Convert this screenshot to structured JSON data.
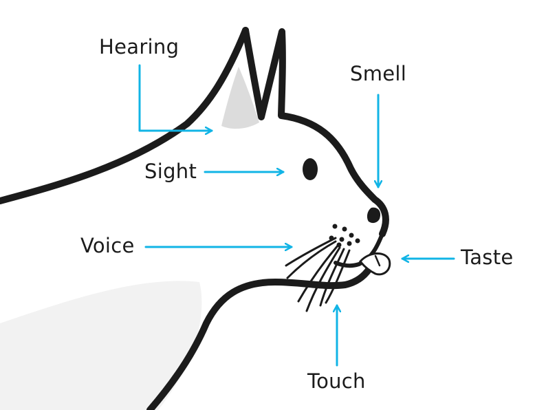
{
  "colors": {
    "outline": "#1b1b1b",
    "arrow": "#11b4e6",
    "ear_inner": "#dcdcdc",
    "body_shadow": "#f2f2f2",
    "tongue": "#ffffff",
    "background": "#ffffff"
  },
  "labels": {
    "hearing": "Hearing",
    "smell": "Smell",
    "sight": "Sight",
    "voice": "Voice",
    "taste": "Taste",
    "touch": "Touch"
  }
}
